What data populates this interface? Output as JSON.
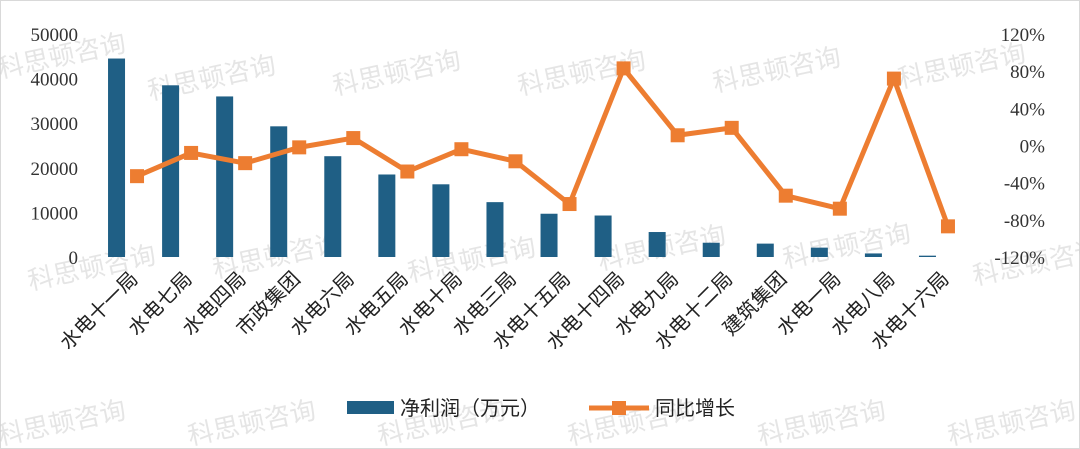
{
  "watermark": "科思顿咨询",
  "chart_data": {
    "type": "bar+line",
    "categories": [
      "水电十一局",
      "水电七局",
      "水电四局",
      "市政集团",
      "水电六局",
      "水电五局",
      "水电十局",
      "水电三局",
      "水电十五局",
      "水电十四局",
      "水电九局",
      "水电十二局",
      "建筑集团",
      "水电一局",
      "水电八局",
      "水电十六局"
    ],
    "series": [
      {
        "name": "净利润（万元）",
        "type": "bar",
        "axis": "left",
        "color": "#1f5f85",
        "values": [
          44500,
          38500,
          36000,
          29300,
          22600,
          18500,
          16300,
          12300,
          9700,
          9300,
          5600,
          3200,
          3000,
          2100,
          800,
          300
        ]
      },
      {
        "name": "同比增长",
        "type": "line",
        "axis": "right",
        "color": "#ed7d31",
        "marker": "square",
        "values": [
          -0.33,
          -0.08,
          -0.19,
          -0.02,
          0.08,
          -0.28,
          -0.04,
          -0.17,
          -0.63,
          0.83,
          0.11,
          0.19,
          -0.54,
          -0.68,
          0.72,
          -0.87
        ]
      }
    ],
    "y_left": {
      "min": 0,
      "max": 50000,
      "ticks": [
        0,
        10000,
        20000,
        30000,
        40000,
        50000
      ],
      "tick_labels": [
        "0",
        "10000",
        "20000",
        "30000",
        "40000",
        "50000"
      ]
    },
    "y_right": {
      "min": -1.2,
      "max": 1.2,
      "ticks": [
        -1.2,
        -0.8,
        -0.4,
        0,
        0.4,
        0.8,
        1.2
      ],
      "tick_labels": [
        "-120%",
        "-80%",
        "-40%",
        "0%",
        "40%",
        "80%",
        "120%"
      ]
    },
    "grid": false,
    "legend_position": "bottom"
  }
}
